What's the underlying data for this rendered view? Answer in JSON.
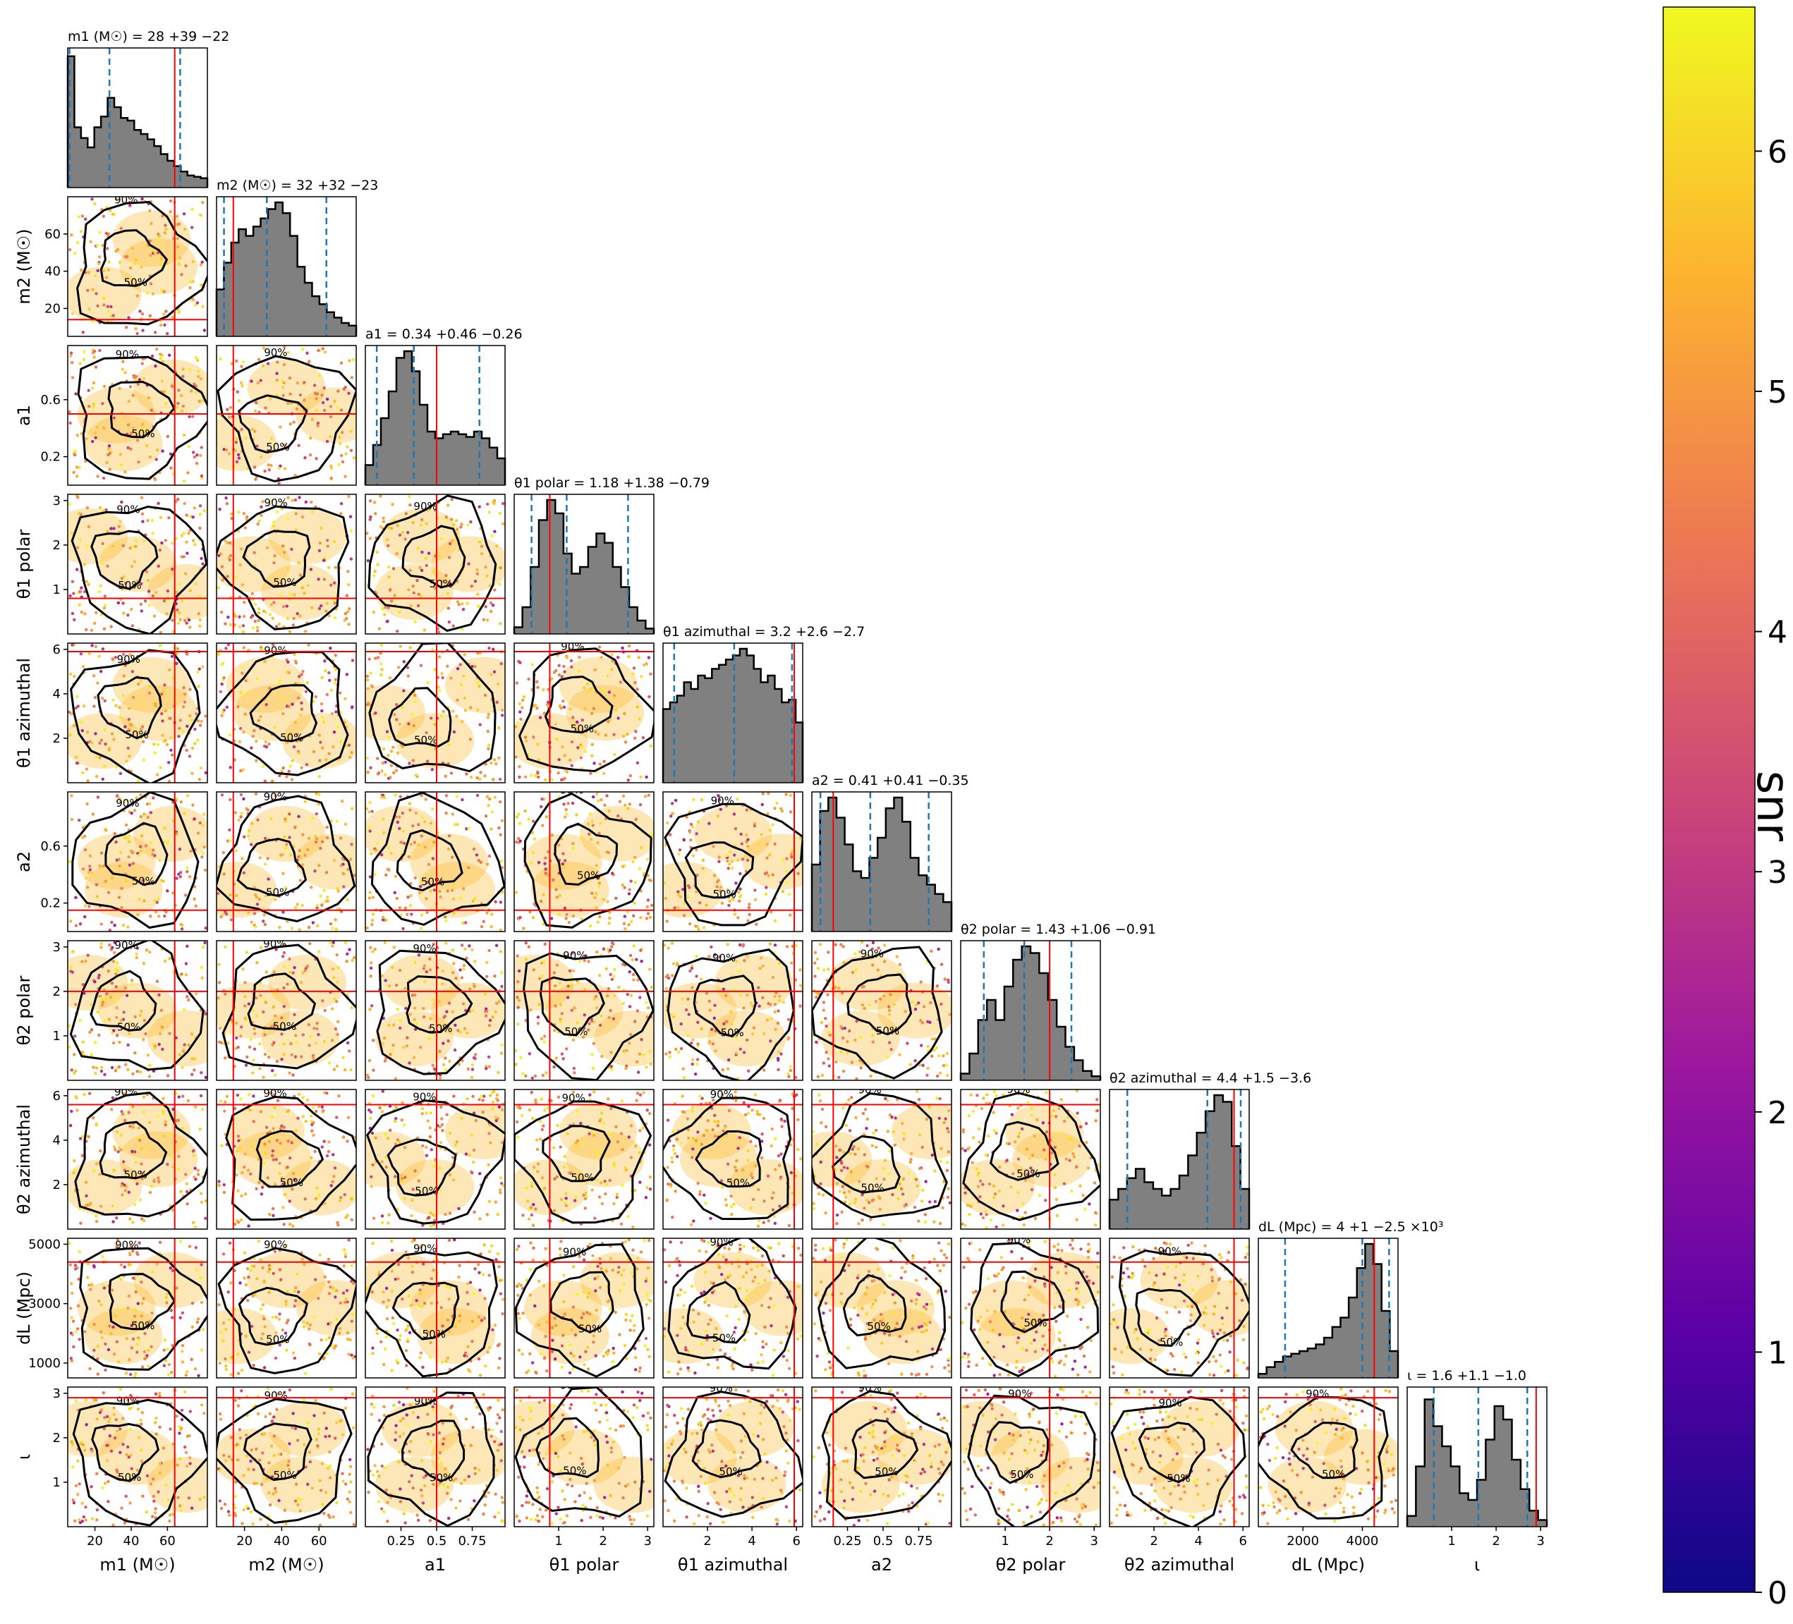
{
  "chart_data": {
    "type": "corner",
    "colorbar": {
      "label": "snr",
      "ticks": [
        "0",
        "1",
        "2",
        "3",
        "4",
        "5",
        "6"
      ],
      "vmin": 0,
      "vmax": 6.6,
      "colormap": [
        "#0d0887",
        "#5c01a6",
        "#9c179e",
        "#cc4778",
        "#ed7953",
        "#fdb42f",
        "#f0f921"
      ]
    },
    "colors": {
      "hist": "#808080",
      "quantile": "#1f77b4",
      "injection": "#ff0000",
      "contour": "#000000"
    },
    "contour_labels": [
      "50%",
      "90%"
    ],
    "params": [
      {
        "axis_label": "m1 (M☉)",
        "title": "m1 (M☉) = 28 +39 −22",
        "ticks": [
          20,
          40,
          60
        ],
        "range": [
          5,
          82
        ],
        "injection": 64,
        "quantiles": [
          6,
          28,
          67
        ],
        "hist": [
          0.98,
          0.45,
          0.37,
          0.3,
          0.45,
          0.53,
          0.67,
          0.6,
          0.52,
          0.5,
          0.43,
          0.4,
          0.36,
          0.31,
          0.25,
          0.2,
          0.16,
          0.12,
          0.09,
          0.08,
          0.07
        ]
      },
      {
        "axis_label": "m2 (M☉)",
        "title": "m2 (M☉) = 32 +32 −23",
        "ticks": [
          20,
          40,
          60
        ],
        "range": [
          5,
          80
        ],
        "injection": 14,
        "quantiles": [
          9,
          32,
          64
        ],
        "hist": [
          0.35,
          0.55,
          0.7,
          0.8,
          0.75,
          0.82,
          0.88,
          0.95,
          1.0,
          0.92,
          0.75,
          0.52,
          0.4,
          0.3,
          0.24,
          0.18,
          0.14,
          0.1,
          0.08
        ]
      },
      {
        "axis_label": "a1",
        "title": "a1 = 0.34 +0.46 −0.26",
        "ticks": [
          0.25,
          0.5,
          0.75
        ],
        "range": [
          0,
          0.98
        ],
        "injection": 0.5,
        "quantiles": [
          0.08,
          0.34,
          0.8
        ],
        "hist": [
          0.15,
          0.3,
          0.5,
          0.7,
          0.95,
          1.0,
          0.85,
          0.6,
          0.4,
          0.35,
          0.38,
          0.4,
          0.38,
          0.36,
          0.4,
          0.35,
          0.28,
          0.2
        ]
      },
      {
        "axis_label": "θ1 polar",
        "title": "θ1 polar = 1.18 +1.38 −0.79",
        "ticks": [
          1,
          2,
          3
        ],
        "range": [
          0,
          3.14
        ],
        "injection": 0.8,
        "quantiles": [
          0.39,
          1.18,
          2.56
        ],
        "hist": [
          0.05,
          0.2,
          0.5,
          0.85,
          1.0,
          0.9,
          0.6,
          0.45,
          0.5,
          0.65,
          0.75,
          0.68,
          0.5,
          0.35,
          0.2,
          0.1,
          0.04
        ]
      },
      {
        "axis_label": "θ1 azimuthal",
        "title": "θ1 azimuthal = 3.2 +2.6 −2.7",
        "ticks": [
          2,
          4,
          6
        ],
        "range": [
          0,
          6.28
        ],
        "injection": 5.9,
        "quantiles": [
          0.5,
          3.2,
          5.8
        ],
        "hist": [
          0.55,
          0.6,
          0.65,
          0.75,
          0.7,
          0.8,
          0.78,
          0.85,
          0.88,
          0.92,
          0.95,
          1.0,
          0.95,
          0.85,
          0.75,
          0.8,
          0.7,
          0.6,
          0.62,
          0.45
        ]
      },
      {
        "axis_label": "a2",
        "title": "a2 = 0.41 +0.41 −0.35",
        "ticks": [
          0.25,
          0.5,
          0.75
        ],
        "range": [
          0,
          0.98
        ],
        "injection": 0.15,
        "quantiles": [
          0.06,
          0.41,
          0.82
        ],
        "hist": [
          0.5,
          0.9,
          1.0,
          0.85,
          0.65,
          0.45,
          0.4,
          0.55,
          0.7,
          0.92,
          1.0,
          0.82,
          0.55,
          0.42,
          0.35,
          0.28,
          0.22
        ]
      },
      {
        "axis_label": "θ2 polar",
        "title": "θ2 polar = 1.43 +1.06 −0.91",
        "ticks": [
          1,
          2,
          3
        ],
        "range": [
          0,
          3.14
        ],
        "injection": 2.0,
        "quantiles": [
          0.52,
          1.43,
          2.49
        ],
        "hist": [
          0.05,
          0.2,
          0.45,
          0.6,
          0.45,
          0.7,
          0.9,
          1.0,
          0.95,
          0.8,
          0.6,
          0.4,
          0.25,
          0.15,
          0.07,
          0.03
        ]
      },
      {
        "axis_label": "θ2 azimuthal",
        "title": "θ2 azimuthal = 4.4 +1.5 −3.6",
        "ticks": [
          2,
          4,
          6
        ],
        "range": [
          0,
          6.28
        ],
        "injection": 5.6,
        "quantiles": [
          0.8,
          4.4,
          5.9
        ],
        "hist": [
          0.22,
          0.3,
          0.38,
          0.45,
          0.35,
          0.3,
          0.25,
          0.3,
          0.4,
          0.55,
          0.72,
          0.88,
          1.0,
          0.95,
          0.62,
          0.3
        ]
      },
      {
        "axis_label": "dL (Mpc)",
        "title": "dL (Mpc) = 4 +1 −2.5 ×10³",
        "ticks": [
          2000,
          4000
        ],
        "range": [
          500,
          5200
        ],
        "injection": 4400,
        "quantiles": [
          1400,
          4000,
          4900
        ],
        "hist": [
          0.03,
          0.08,
          0.12,
          0.16,
          0.18,
          0.2,
          0.22,
          0.25,
          0.3,
          0.38,
          0.45,
          0.6,
          0.82,
          1.0,
          0.85,
          0.5,
          0.2
        ]
      },
      {
        "axis_label": "ι",
        "title": "ι = 1.6 +1.1 −1.0",
        "ticks": [
          1,
          2,
          3
        ],
        "range": [
          0,
          3.14
        ],
        "injection": 2.9,
        "quantiles": [
          0.6,
          1.6,
          2.7
        ],
        "hist": [
          0.08,
          0.45,
          0.95,
          0.75,
          0.6,
          0.45,
          0.25,
          0.2,
          0.35,
          0.65,
          0.9,
          0.8,
          0.5,
          0.28,
          0.12,
          0.05
        ]
      }
    ],
    "row_ticks": [
      [],
      [
        "20",
        "40",
        "60"
      ],
      [
        "0.2",
        "0.6"
      ],
      [
        "1",
        "2",
        "3"
      ],
      [
        "2",
        "4",
        "6"
      ],
      [
        "0.2",
        "0.6"
      ],
      [
        "1",
        "2",
        "3"
      ],
      [
        "2",
        "4",
        "6"
      ],
      [
        "1000",
        "3000",
        "5000"
      ],
      [
        "1",
        "2",
        "3"
      ]
    ]
  }
}
